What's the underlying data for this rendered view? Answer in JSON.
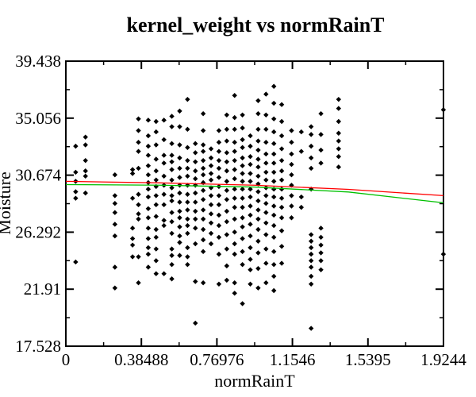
{
  "chart_data": {
    "type": "scatter",
    "title": "kernel_weight vs normRainT",
    "xlabel": "normRainT",
    "ylabel": "Moisture",
    "xlim": [
      0,
      1.9244
    ],
    "ylim": [
      17.528,
      39.438
    ],
    "x_ticks": [
      "0",
      "0.38488",
      "0.76976",
      "1.1546",
      "1.5395",
      "1.9244"
    ],
    "y_ticks": [
      "17.528",
      "21.91",
      "26.292",
      "30.674",
      "35.056",
      "39.438"
    ],
    "grid": false,
    "legend": "none",
    "colors": {
      "points": "#000000",
      "red_fit": "#ff0000",
      "green_fit": "#00c000"
    },
    "fit_lines": [
      {
        "color": "red",
        "x": [
          0,
          0.48,
          0.96,
          1.44,
          1.9244
        ],
        "y": [
          30.2,
          30.08,
          29.9,
          29.58,
          29.1
        ]
      },
      {
        "color": "green",
        "x": [
          0,
          0.48,
          0.96,
          1.44,
          1.9244
        ],
        "y": [
          29.95,
          29.9,
          29.76,
          29.38,
          28.55
        ]
      }
    ],
    "points_seed_note": "",
    "clusters": [
      {
        "x": 0.05,
        "ys": [
          32.9,
          30.9,
          29.4,
          28.9,
          30.2,
          24.0
        ]
      },
      {
        "x": 0.1,
        "ys": [
          33.6,
          33.0,
          31.8,
          31.0,
          30.6,
          29.3
        ]
      },
      {
        "x": 0.25,
        "ys": [
          30.7,
          29.1,
          28.5,
          27.8,
          26.9,
          26.0,
          23.6,
          22.0
        ]
      },
      {
        "x": 0.34,
        "ys": [
          31.1,
          30.8,
          28.9,
          26.6,
          25.8,
          25.3,
          24.4
        ]
      },
      {
        "x": 0.37,
        "ys": [
          35.0,
          34.1,
          33.2,
          32.5,
          31.2,
          29.2,
          28.4,
          27.7,
          27.3,
          24.4,
          22.4
        ]
      },
      {
        "x": 0.42,
        "ys": [
          34.9,
          33.7,
          32.9,
          32.2,
          31.4,
          30.7,
          30.1,
          29.6,
          29.0,
          28.1,
          27.4,
          26.6,
          25.8,
          25.1,
          24.6,
          23.6
        ]
      },
      {
        "x": 0.46,
        "ys": [
          34.8,
          34.0,
          33.0,
          31.9,
          31.0,
          30.3,
          29.8,
          29.1,
          28.4,
          27.5,
          26.5,
          25.9,
          25.0,
          24.1,
          23.1
        ]
      },
      {
        "x": 0.5,
        "ys": [
          34.9,
          33.4,
          32.2,
          31.6,
          30.6,
          29.9,
          29.2,
          28.4,
          27.2,
          26.8,
          23.1
        ]
      },
      {
        "x": 0.54,
        "ys": [
          35.2,
          34.4,
          33.1,
          32.2,
          31.7,
          31.1,
          30.3,
          29.7,
          29.1,
          28.7,
          27.8,
          27.1,
          26.2,
          25.0,
          24.5,
          23.8,
          22.7
        ]
      },
      {
        "x": 0.58,
        "ys": [
          35.6,
          34.4,
          33.0,
          32.0,
          31.2,
          30.5,
          29.9,
          29.3,
          28.6,
          27.9,
          27.4,
          26.7,
          26.0,
          25.5,
          24.5
        ]
      },
      {
        "x": 0.62,
        "ys": [
          36.5,
          34.2,
          32.8,
          31.8,
          31.2,
          30.6,
          29.9,
          29.2,
          28.6,
          28.0,
          27.3,
          26.8,
          26.2,
          25.1,
          24.4,
          23.8
        ]
      },
      {
        "x": 0.66,
        "ys": [
          33.1,
          32.4,
          31.7,
          31.0,
          30.4,
          29.9,
          29.3,
          28.6,
          27.9,
          27.3,
          26.6,
          25.4,
          22.5,
          19.3
        ]
      },
      {
        "x": 0.7,
        "ys": [
          35.4,
          34.1,
          33.0,
          32.5,
          31.8,
          31.2,
          30.7,
          30.1,
          29.5,
          28.8,
          28.0,
          27.3,
          26.5,
          25.7,
          24.8,
          22.4
        ]
      },
      {
        "x": 0.74,
        "ys": [
          32.7,
          32.0,
          31.4,
          30.8,
          30.3,
          29.7,
          29.1,
          28.4,
          27.7,
          27.0,
          26.2,
          25.4
        ]
      },
      {
        "x": 0.78,
        "ys": [
          34.1,
          33.2,
          32.5,
          31.8,
          31.2,
          30.5,
          29.8,
          29.1,
          28.4,
          27.6,
          26.8,
          25.9,
          24.6,
          22.3
        ]
      },
      {
        "x": 0.82,
        "ys": [
          35.3,
          34.2,
          33.3,
          32.4,
          31.7,
          31.0,
          30.2,
          29.5,
          28.8,
          27.9,
          27.1,
          26.1,
          25.0,
          23.7,
          22.6
        ]
      },
      {
        "x": 0.86,
        "ys": [
          36.8,
          35.1,
          34.2,
          33.2,
          32.5,
          31.8,
          31.1,
          30.4,
          29.6,
          28.9,
          28.2,
          27.3,
          26.3,
          25.4,
          24.6,
          22.4,
          21.6
        ]
      },
      {
        "x": 0.9,
        "ys": [
          35.3,
          34.3,
          33.4,
          32.8,
          32.0,
          31.4,
          30.8,
          30.2,
          29.6,
          28.9,
          28.2,
          27.4,
          26.7,
          25.8,
          24.8,
          23.8,
          20.8
        ]
      },
      {
        "x": 0.94,
        "ys": [
          33.7,
          32.9,
          32.1,
          31.5,
          30.8,
          30.2,
          29.6,
          29.0,
          28.3,
          27.6,
          26.9,
          26.0,
          25.1,
          24.2,
          23.4,
          22.3
        ]
      },
      {
        "x": 0.98,
        "ys": [
          36.4,
          35.4,
          34.2,
          33.3,
          32.6,
          31.9,
          31.3,
          30.6,
          30.0,
          29.4,
          28.7,
          28.0,
          27.3,
          26.5,
          25.6,
          24.7,
          23.5,
          22.0
        ]
      },
      {
        "x": 1.02,
        "ys": [
          36.9,
          35.3,
          34.2,
          33.2,
          32.3,
          31.6,
          30.9,
          30.3,
          29.7,
          29.1,
          28.5,
          27.8,
          27.0,
          26.1,
          25.0,
          23.9,
          22.4
        ]
      },
      {
        "x": 1.06,
        "ys": [
          37.5,
          36.2,
          35.0,
          34.0,
          33.1,
          32.3,
          31.6,
          30.9,
          30.2,
          29.6,
          29.0,
          28.3,
          27.6,
          26.8,
          25.9,
          24.8,
          23.8,
          22.9,
          21.8
        ]
      },
      {
        "x": 1.1,
        "ys": [
          36.1,
          34.8,
          33.7,
          32.7,
          31.8,
          31.0,
          30.3,
          29.6,
          28.9,
          28.2,
          27.4,
          26.4,
          25.2,
          23.9
        ]
      },
      {
        "x": 1.15,
        "ys": [
          34.1,
          33.2,
          32.3,
          31.5,
          30.7,
          29.9,
          29.1,
          28.3,
          27.4
        ]
      },
      {
        "x": 1.2,
        "ys": [
          34.0,
          32.5,
          29.0,
          28.2
        ]
      },
      {
        "x": 1.25,
        "ys": [
          34.4,
          33.8,
          32.9,
          32.0,
          31.2,
          29.6,
          26.1,
          25.6,
          25.1,
          24.6,
          24.1,
          23.6,
          22.9,
          22.3,
          18.9
        ]
      },
      {
        "x": 1.3,
        "ys": [
          35.4,
          33.8,
          32.6,
          31.6,
          26.6,
          25.9,
          25.3,
          24.7,
          24.1,
          23.4
        ]
      },
      {
        "x": 1.39,
        "ys": [
          36.5,
          35.8,
          34.8,
          33.9,
          33.3,
          32.7,
          32.1,
          31.3
        ]
      },
      {
        "x": 1.924,
        "ys": [
          35.7,
          24.6
        ]
      }
    ]
  }
}
